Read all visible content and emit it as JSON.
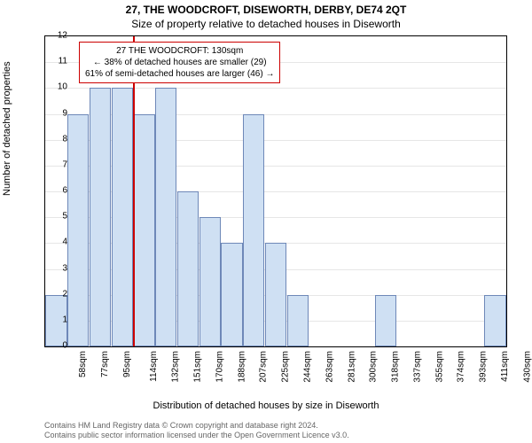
{
  "title_line1": "27, THE WOODCROFT, DISEWORTH, DERBY, DE74 2QT",
  "title_line2": "Size of property relative to detached houses in Diseworth",
  "ylabel": "Number of detached properties",
  "xlabel": "Distribution of detached houses by size in Diseworth",
  "footer_line1": "Contains HM Land Registry data © Crown copyright and database right 2024.",
  "footer_line2": "Contains public sector information licensed under the Open Government Licence v3.0.",
  "chart": {
    "type": "histogram",
    "ylim": [
      0,
      12
    ],
    "ytick_step": 1,
    "grid_color": "#e6e6e6",
    "bar_fill": "#cfe0f3",
    "bar_border": "#6e88b8",
    "background_color": "#ffffff",
    "marker_color": "#cc0000",
    "marker_x_index": 4.05,
    "xtick_labels": [
      "58sqm",
      "77sqm",
      "95sqm",
      "114sqm",
      "132sqm",
      "151sqm",
      "170sqm",
      "188sqm",
      "207sqm",
      "225sqm",
      "244sqm",
      "263sqm",
      "281sqm",
      "300sqm",
      "318sqm",
      "337sqm",
      "355sqm",
      "374sqm",
      "393sqm",
      "411sqm",
      "430sqm"
    ],
    "bar_values": [
      2,
      9,
      10,
      10,
      9,
      10,
      6,
      5,
      4,
      9,
      4,
      2,
      0,
      0,
      0,
      2,
      0,
      0,
      0,
      0,
      2
    ],
    "callout": {
      "line1": "27 THE WOODCROFT: 130sqm",
      "line2": "← 38% of detached houses are smaller (29)",
      "line3": "61% of semi-detached houses are larger (46) →"
    }
  }
}
